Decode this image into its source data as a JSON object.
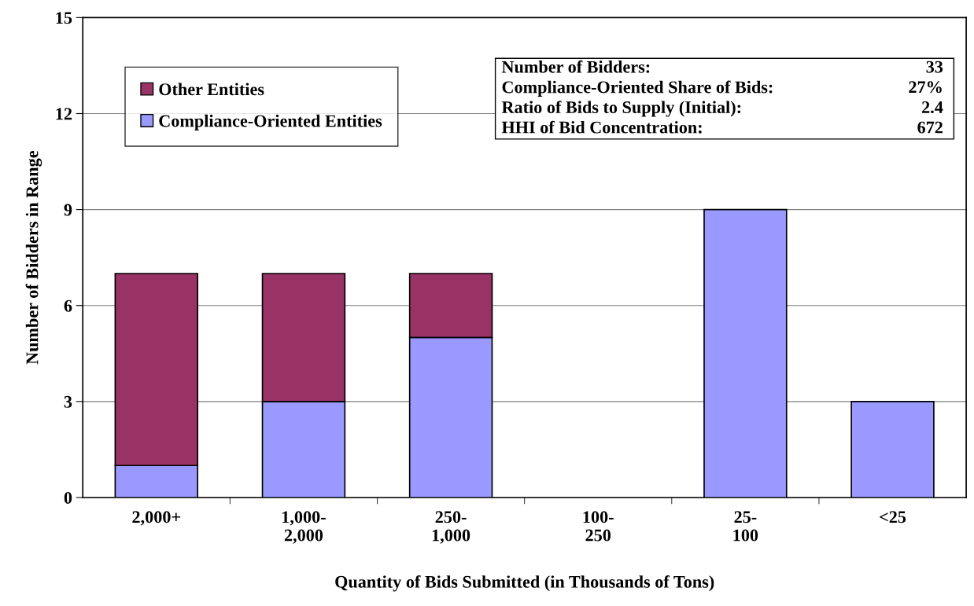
{
  "chart_data": {
    "type": "bar",
    "stacked": true,
    "categories": [
      "2,000+",
      "1,000-\n2,000",
      "250-\n1,000",
      "100-\n250",
      "25-\n100",
      "<25"
    ],
    "series": [
      {
        "name": "Compliance-Oriented Entities",
        "color": "#9999ff",
        "values": [
          1,
          3,
          5,
          0,
          9,
          3
        ]
      },
      {
        "name": "Other Entities",
        "color": "#993366",
        "values": [
          6,
          4,
          2,
          0,
          0,
          0
        ]
      }
    ],
    "xlabel": "Quantity of Bids Submitted (in Thousands of Tons)",
    "ylabel": "Number of Bidders in Range",
    "ylim": [
      0,
      15
    ],
    "yticks": [
      0,
      3,
      6,
      9,
      12,
      15
    ],
    "grid": "y",
    "legend": "top left",
    "annotations": [
      "Number of Bidders:",
      "33",
      "Compliance-Oriented Share of Bids:",
      "27%",
      "Ratio of Bids to Supply (Initial):",
      "2.4",
      "HHI of Bid Concentration:",
      "672"
    ]
  }
}
